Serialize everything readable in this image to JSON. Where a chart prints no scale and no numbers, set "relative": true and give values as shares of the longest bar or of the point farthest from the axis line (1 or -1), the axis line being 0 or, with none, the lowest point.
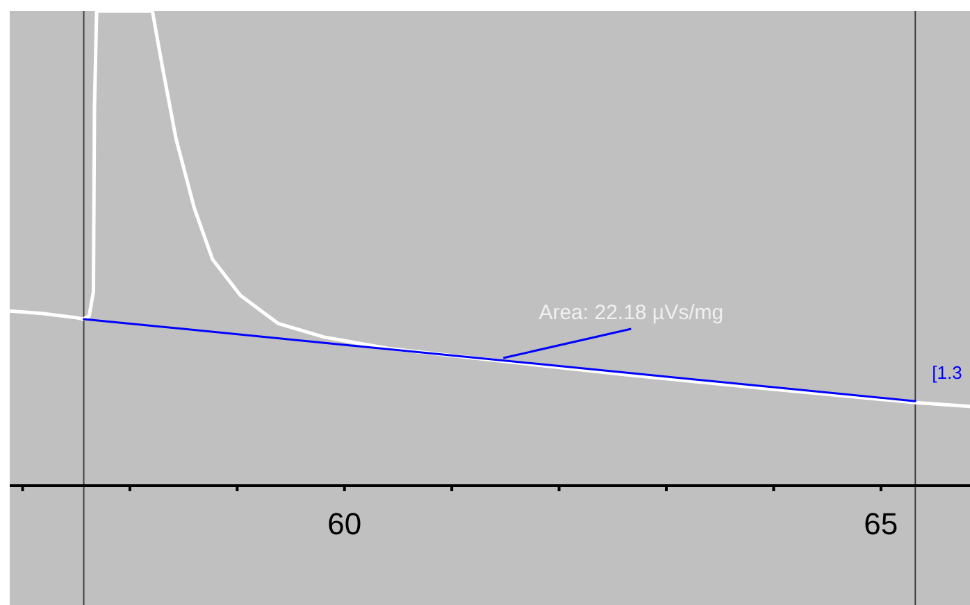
{
  "chart_data": {
    "type": "line",
    "relative": true,
    "xlim": [
      56.88,
      65.83
    ],
    "xticks": [
      {
        "value": 57,
        "label": null
      },
      {
        "value": 58,
        "label": null
      },
      {
        "value": 59,
        "label": null
      },
      60,
      {
        "value": 61,
        "label": null
      },
      {
        "value": 62,
        "label": null
      },
      {
        "value": 63,
        "label": null
      },
      {
        "value": 64,
        "label": null
      },
      65
    ],
    "series": [
      {
        "color": "#ffffff",
        "x": [
          56.88,
          57.18,
          57.5,
          57.56,
          57.62,
          57.66,
          57.67,
          57.69,
          58.21,
          58.3,
          58.43,
          58.6,
          58.77,
          59.03,
          59.38,
          59.81,
          60.41,
          61.32,
          62.62,
          63.91,
          65.32,
          65.83
        ],
        "values": [
          0.368,
          0.363,
          0.354,
          0.351,
          0.357,
          0.409,
          0.798,
          1.0,
          1.0,
          0.886,
          0.731,
          0.585,
          0.477,
          0.401,
          0.342,
          0.313,
          0.289,
          0.266,
          0.234,
          0.205,
          0.175,
          0.167
        ]
      },
      {
        "color": "#0000ff",
        "x": [
          57.57,
          65.32
        ],
        "values": [
          0.351,
          0.178
        ]
      }
    ],
    "ref_lines": [
      {
        "axis": "x",
        "value": 57.57,
        "color": "#404040"
      },
      {
        "axis": "x",
        "value": 65.32,
        "color": "#404040"
      }
    ],
    "annotations": [
      {
        "text": "Area: 22.18 µVs/mg",
        "x": 61.48,
        "y": 0.269
      },
      {
        "text": "[1.3",
        "x": 65.32,
        "y": 0.178
      }
    ],
    "grid": false,
    "marker": "none",
    "line_style": "solid"
  }
}
